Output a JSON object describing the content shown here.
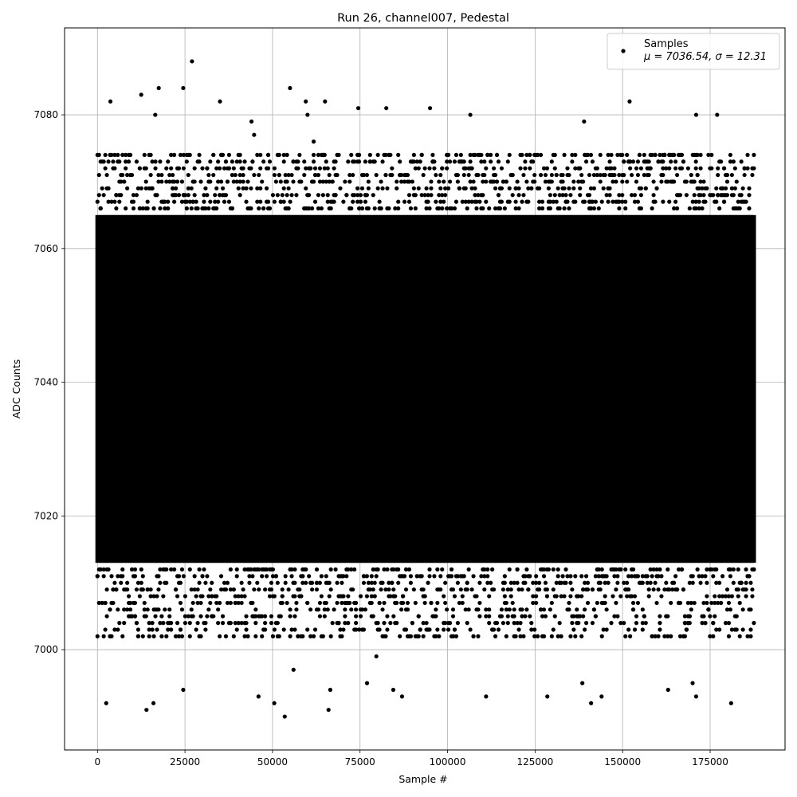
{
  "chart_data": {
    "type": "scatter",
    "title": "Run 26, channel007, Pedestal",
    "xlabel": "Sample #",
    "ylabel": "ADC Counts",
    "xlim": [
      -9400,
      196400
    ],
    "ylim": [
      6985,
      7093
    ],
    "xticks": [
      0,
      25000,
      50000,
      75000,
      100000,
      125000,
      150000,
      175000
    ],
    "xtick_labels": [
      "0",
      "25000",
      "50000",
      "75000",
      "100000",
      "125000",
      "150000",
      "175000"
    ],
    "yticks": [
      7000,
      7020,
      7040,
      7060,
      7080
    ],
    "ytick_labels": [
      "7000",
      "7020",
      "7040",
      "7060",
      "7080"
    ],
    "grid": true,
    "legend_position": "top-right",
    "marker_color": "#000000",
    "series": [
      {
        "name": "Samples",
        "stats_label": "μ = 7036.54, σ = 12.31",
        "mean": 7036.54,
        "sigma": 12.31,
        "n_samples": 187500,
        "x_range": [
          0,
          187500
        ],
        "dense_band": [
          7013,
          7065
        ],
        "outliers": [
          [
            3700,
            7082
          ],
          [
            12500,
            7083
          ],
          [
            17500,
            7084
          ],
          [
            24500,
            7084
          ],
          [
            27000,
            7088
          ],
          [
            35000,
            7082
          ],
          [
            55000,
            7084
          ],
          [
            59500,
            7082
          ],
          [
            65000,
            7082
          ],
          [
            74500,
            7081
          ],
          [
            82500,
            7081
          ],
          [
            95000,
            7081
          ],
          [
            106500,
            7080
          ],
          [
            152000,
            7082
          ],
          [
            171000,
            7080
          ],
          [
            177000,
            7080
          ],
          [
            16500,
            7080
          ],
          [
            60000,
            7080
          ],
          [
            139000,
            7079
          ],
          [
            44000,
            7079
          ],
          [
            2500,
            6992
          ],
          [
            14000,
            6991
          ],
          [
            16000,
            6992
          ],
          [
            24500,
            6994
          ],
          [
            50500,
            6992
          ],
          [
            53500,
            6990
          ],
          [
            66000,
            6991
          ],
          [
            66500,
            6994
          ],
          [
            84500,
            6994
          ],
          [
            87000,
            6993
          ],
          [
            111000,
            6993
          ],
          [
            128500,
            6993
          ],
          [
            138500,
            6995
          ],
          [
            141000,
            6992
          ],
          [
            144000,
            6993
          ],
          [
            163000,
            6994
          ],
          [
            170000,
            6995
          ],
          [
            171000,
            6993
          ],
          [
            181000,
            6992
          ],
          [
            56000,
            6997
          ],
          [
            77000,
            6995
          ],
          [
            46000,
            6993
          ]
        ]
      }
    ]
  }
}
